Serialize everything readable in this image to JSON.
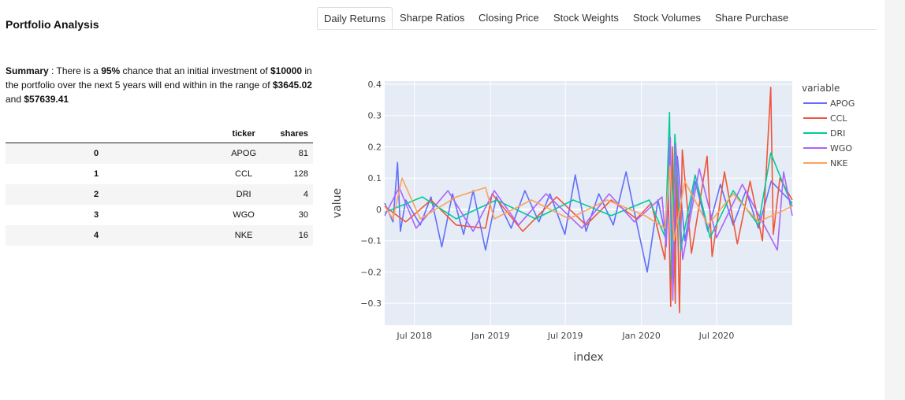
{
  "app": {
    "title": "Portfolio Analysis"
  },
  "summary": {
    "label": "Summary",
    "text_1": " : There is a ",
    "probability": "95%",
    "text_2": " chance that an initial investment of ",
    "initial": "$10000",
    "text_3": " in the portfolio over the next 5 years will end within in the range of ",
    "low": "$3645.02",
    "text_4": " and ",
    "high": "$57639.41"
  },
  "table": {
    "headers": {
      "index": "",
      "ticker": "ticker",
      "shares": "shares"
    },
    "rows": [
      {
        "index": "0",
        "ticker": "APOG",
        "shares": "81"
      },
      {
        "index": "1",
        "ticker": "CCL",
        "shares": "128"
      },
      {
        "index": "2",
        "ticker": "DRI",
        "shares": "4"
      },
      {
        "index": "3",
        "ticker": "WGO",
        "shares": "30"
      },
      {
        "index": "4",
        "ticker": "NKE",
        "shares": "16"
      }
    ]
  },
  "tabs": [
    {
      "label": "Daily Returns",
      "active": true
    },
    {
      "label": "Sharpe Ratios",
      "active": false
    },
    {
      "label": "Closing Price",
      "active": false
    },
    {
      "label": "Stock Weights",
      "active": false
    },
    {
      "label": "Stock Volumes",
      "active": false
    },
    {
      "label": "Share Purchase",
      "active": false
    }
  ],
  "chart_data": {
    "type": "line",
    "xlabel": "index",
    "ylabel": "value",
    "legend_title": "variable",
    "legend_placement": "top-right",
    "grid": true,
    "x_range": [
      "2018-04-20",
      "2020-12-31"
    ],
    "ylim": [
      -0.37,
      0.41
    ],
    "x_ticks": [
      {
        "date": "2018-07-01",
        "label": "Jul 2018"
      },
      {
        "date": "2019-01-01",
        "label": "Jan 2019"
      },
      {
        "date": "2019-07-01",
        "label": "Jul 2019"
      },
      {
        "date": "2020-01-01",
        "label": "Jan 2020"
      },
      {
        "date": "2020-07-01",
        "label": "Jul 2020"
      }
    ],
    "y_ticks": [
      {
        "value": 0.4,
        "label": "0.4"
      },
      {
        "value": 0.3,
        "label": "0.3"
      },
      {
        "value": 0.2,
        "label": "0.2"
      },
      {
        "value": 0.1,
        "label": "0.1"
      },
      {
        "value": 0,
        "label": "0"
      },
      {
        "value": -0.1,
        "label": "−0.1"
      },
      {
        "value": -0.2,
        "label": "−0.2"
      },
      {
        "value": -0.3,
        "label": "−0.3"
      }
    ],
    "series": [
      {
        "name": "APOG",
        "color": "#636efa",
        "points": [
          [
            "2018-04-20",
            0.02
          ],
          [
            "2018-05-10",
            -0.04
          ],
          [
            "2018-05-21",
            0.15
          ],
          [
            "2018-05-28",
            -0.07
          ],
          [
            "2018-06-10",
            0.03
          ],
          [
            "2018-07-15",
            -0.05
          ],
          [
            "2018-08-10",
            0.04
          ],
          [
            "2018-09-05",
            -0.12
          ],
          [
            "2018-10-01",
            0.05
          ],
          [
            "2018-10-28",
            -0.08
          ],
          [
            "2018-11-20",
            0.06
          ],
          [
            "2018-12-20",
            -0.13
          ],
          [
            "2019-01-15",
            0.04
          ],
          [
            "2019-02-20",
            -0.06
          ],
          [
            "2019-03-25",
            0.06
          ],
          [
            "2019-04-28",
            -0.04
          ],
          [
            "2019-05-25",
            0.05
          ],
          [
            "2019-06-30",
            -0.08
          ],
          [
            "2019-07-25",
            0.11
          ],
          [
            "2019-08-20",
            -0.07
          ],
          [
            "2019-09-20",
            0.05
          ],
          [
            "2019-10-25",
            -0.05
          ],
          [
            "2019-11-25",
            0.12
          ],
          [
            "2019-12-20",
            -0.04
          ],
          [
            "2020-01-15",
            -0.2
          ],
          [
            "2020-02-10",
            0.03
          ],
          [
            "2020-02-28",
            -0.08
          ],
          [
            "2020-03-10",
            0.22
          ],
          [
            "2020-03-18",
            -0.24
          ],
          [
            "2020-03-28",
            0.17
          ],
          [
            "2020-04-15",
            -0.1
          ],
          [
            "2020-05-10",
            0.09
          ],
          [
            "2020-06-10",
            -0.07
          ],
          [
            "2020-07-10",
            0.08
          ],
          [
            "2020-08-10",
            -0.05
          ],
          [
            "2020-09-10",
            0.06
          ],
          [
            "2020-10-10",
            -0.06
          ],
          [
            "2020-11-10",
            0.09
          ],
          [
            "2020-12-31",
            0.02
          ]
        ]
      },
      {
        "name": "CCL",
        "color": "#ef553b",
        "points": [
          [
            "2018-04-20",
            0.01
          ],
          [
            "2018-06-10",
            -0.04
          ],
          [
            "2018-08-10",
            0.03
          ],
          [
            "2018-10-10",
            -0.05
          ],
          [
            "2018-12-20",
            -0.06
          ],
          [
            "2019-01-05",
            0.05
          ],
          [
            "2019-03-20",
            -0.07
          ],
          [
            "2019-06-10",
            0.04
          ],
          [
            "2019-08-20",
            -0.05
          ],
          [
            "2019-10-20",
            0.03
          ],
          [
            "2019-12-20",
            -0.03
          ],
          [
            "2020-01-25",
            0.02
          ],
          [
            "2020-02-27",
            -0.16
          ],
          [
            "2020-03-05",
            0.12
          ],
          [
            "2020-03-12",
            -0.31
          ],
          [
            "2020-03-16",
            0.2
          ],
          [
            "2020-03-23",
            -0.3
          ],
          [
            "2020-03-26",
            0.15
          ],
          [
            "2020-04-02",
            -0.33
          ],
          [
            "2020-04-09",
            0.19
          ],
          [
            "2020-05-01",
            -0.14
          ],
          [
            "2020-06-08",
            0.17
          ],
          [
            "2020-06-20",
            -0.15
          ],
          [
            "2020-07-20",
            0.12
          ],
          [
            "2020-08-20",
            -0.11
          ],
          [
            "2020-09-20",
            0.09
          ],
          [
            "2020-10-20",
            -0.1
          ],
          [
            "2020-11-09",
            0.39
          ],
          [
            "2020-11-15",
            -0.08
          ],
          [
            "2020-12-01",
            0.1
          ],
          [
            "2020-12-31",
            0.03
          ]
        ]
      },
      {
        "name": "DRI",
        "color": "#00cc96",
        "points": [
          [
            "2018-04-20",
            -0.01
          ],
          [
            "2018-07-20",
            0.04
          ],
          [
            "2018-10-10",
            -0.03
          ],
          [
            "2019-01-15",
            0.03
          ],
          [
            "2019-04-20",
            -0.03
          ],
          [
            "2019-07-20",
            0.03
          ],
          [
            "2019-10-20",
            -0.02
          ],
          [
            "2020-01-20",
            0.03
          ],
          [
            "2020-02-28",
            -0.09
          ],
          [
            "2020-03-09",
            0.31
          ],
          [
            "2020-03-14",
            -0.22
          ],
          [
            "2020-03-22",
            0.24
          ],
          [
            "2020-04-05",
            -0.13
          ],
          [
            "2020-05-10",
            0.11
          ],
          [
            "2020-06-15",
            -0.09
          ],
          [
            "2020-08-10",
            0.06
          ],
          [
            "2020-10-10",
            -0.05
          ],
          [
            "2020-11-09",
            0.18
          ],
          [
            "2020-12-31",
            0.01
          ]
        ]
      },
      {
        "name": "WGO",
        "color": "#ab63fa",
        "points": [
          [
            "2018-04-20",
            -0.02
          ],
          [
            "2018-05-25",
            0.07
          ],
          [
            "2018-07-05",
            -0.06
          ],
          [
            "2018-09-20",
            0.06
          ],
          [
            "2018-11-20",
            -0.07
          ],
          [
            "2019-01-10",
            0.06
          ],
          [
            "2019-03-10",
            -0.05
          ],
          [
            "2019-05-15",
            0.05
          ],
          [
            "2019-08-10",
            -0.06
          ],
          [
            "2019-10-15",
            0.05
          ],
          [
            "2019-12-15",
            -0.04
          ],
          [
            "2020-02-20",
            0.04
          ],
          [
            "2020-03-01",
            -0.12
          ],
          [
            "2020-03-11",
            0.23
          ],
          [
            "2020-03-17",
            -0.29
          ],
          [
            "2020-03-24",
            0.21
          ],
          [
            "2020-04-10",
            -0.16
          ],
          [
            "2020-05-20",
            0.13
          ],
          [
            "2020-07-01",
            -0.09
          ],
          [
            "2020-09-01",
            0.08
          ],
          [
            "2020-11-05",
            -0.08
          ],
          [
            "2020-11-25",
            -0.13
          ],
          [
            "2020-12-10",
            0.12
          ],
          [
            "2020-12-31",
            -0.02
          ]
        ]
      },
      {
        "name": "NKE",
        "color": "#ffa15a",
        "points": [
          [
            "2018-04-20",
            0.01
          ],
          [
            "2018-05-10",
            -0.03
          ],
          [
            "2018-06-01",
            0.1
          ],
          [
            "2018-07-15",
            -0.03
          ],
          [
            "2018-10-10",
            0.04
          ],
          [
            "2018-12-20",
            0.07
          ],
          [
            "2019-01-10",
            -0.03
          ],
          [
            "2019-04-10",
            0.03
          ],
          [
            "2019-07-10",
            -0.03
          ],
          [
            "2019-10-10",
            0.03
          ],
          [
            "2020-01-10",
            -0.02
          ],
          [
            "2020-02-27",
            -0.06
          ],
          [
            "2020-03-10",
            0.14
          ],
          [
            "2020-03-20",
            -0.1
          ],
          [
            "2020-04-15",
            0.09
          ],
          [
            "2020-06-10",
            -0.05
          ],
          [
            "2020-08-10",
            0.05
          ],
          [
            "2020-10-10",
            -0.04
          ],
          [
            "2020-12-31",
            0.01
          ]
        ]
      }
    ]
  }
}
